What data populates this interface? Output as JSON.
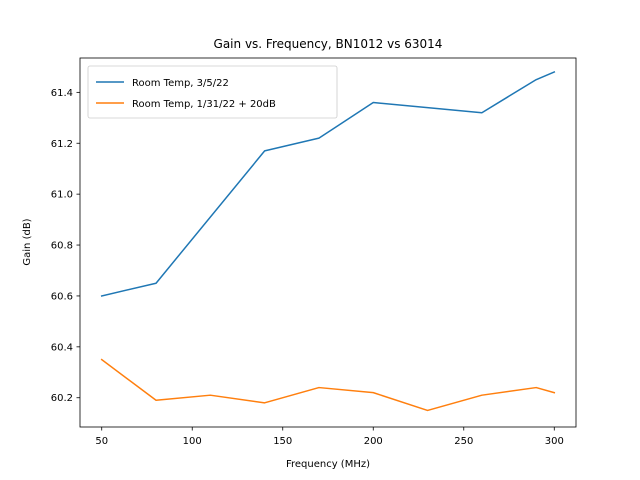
{
  "chart_data": {
    "type": "line",
    "title": "Gain vs. Frequency, BN1012 vs 63014",
    "xlabel": "Frequency (MHz)",
    "ylabel": "Gain (dB)",
    "xlim": [
      38,
      312
    ],
    "ylim": [
      60.085,
      61.535
    ],
    "xticks": [
      50,
      100,
      150,
      200,
      250,
      300
    ],
    "yticks": [
      60.2,
      60.4,
      60.6,
      60.8,
      61.0,
      61.2,
      61.4
    ],
    "ytick_labels": [
      "60.2",
      "60.4",
      "60.6",
      "60.8",
      "61.0",
      "61.2",
      "61.4"
    ],
    "grid": false,
    "legend_position": "upper-left",
    "series": [
      {
        "name": "Room Temp, 3/5/22",
        "color": "#1f77b4",
        "x": [
          50,
          80,
          140,
          170,
          200,
          260,
          290,
          300
        ],
        "y": [
          60.6,
          60.65,
          61.17,
          61.22,
          61.36,
          61.32,
          61.45,
          61.48
        ]
      },
      {
        "name": "Room Temp, 1/31/22 + 20dB",
        "color": "#ff7f0e",
        "x": [
          50,
          80,
          110,
          140,
          170,
          200,
          230,
          260,
          290,
          300
        ],
        "y": [
          60.35,
          60.19,
          60.21,
          60.18,
          60.24,
          60.22,
          60.15,
          60.21,
          60.24,
          60.22
        ]
      }
    ]
  }
}
